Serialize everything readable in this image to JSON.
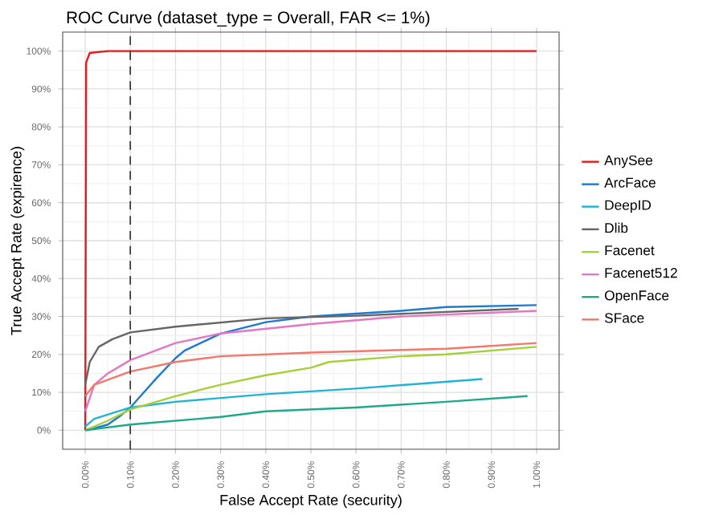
{
  "chart_data": {
    "type": "line",
    "title": "ROC Curve (dataset_type = Overall, FAR <= 1%)",
    "xlabel": "False Accept Rate (security)",
    "ylabel": "True Accept Rate (expirence)",
    "xlim": [
      -0.05,
      1.05
    ],
    "ylim": [
      -5,
      105
    ],
    "xticks": [
      {
        "value": 0,
        "label": "0.00%"
      },
      {
        "value": 0.1,
        "label": "0.10%"
      },
      {
        "value": 0.2,
        "label": "0.20%"
      },
      {
        "value": 0.3,
        "label": "0.30%"
      },
      {
        "value": 0.4,
        "label": "0.40%"
      },
      {
        "value": 0.5,
        "label": "0.50%"
      },
      {
        "value": 0.6,
        "label": "0.60%"
      },
      {
        "value": 0.7,
        "label": "0.70%"
      },
      {
        "value": 0.8,
        "label": "0.80%"
      },
      {
        "value": 0.9,
        "label": "0.90%"
      },
      {
        "value": 1.0,
        "label": "1.00%"
      }
    ],
    "yticks": [
      {
        "value": 0,
        "label": "0%"
      },
      {
        "value": 10,
        "label": "10%"
      },
      {
        "value": 20,
        "label": "20%"
      },
      {
        "value": 30,
        "label": "30%"
      },
      {
        "value": 40,
        "label": "40%"
      },
      {
        "value": 50,
        "label": "50%"
      },
      {
        "value": 60,
        "label": "60%"
      },
      {
        "value": 70,
        "label": "70%"
      },
      {
        "value": 80,
        "label": "80%"
      },
      {
        "value": 90,
        "label": "90%"
      },
      {
        "value": 100,
        "label": "100%"
      }
    ],
    "grid": true,
    "legend": "right",
    "marker": "none",
    "line_style": "solid",
    "ref_lines": [
      {
        "axis": "x",
        "value": 0.1,
        "color": "#333333",
        "line_style": "dashed"
      }
    ],
    "series": [
      {
        "name": "AnySee",
        "color": "#e41a1c",
        "x": [
          0,
          0.002,
          0.01,
          0.05,
          1.0
        ],
        "values": [
          0,
          97,
          99.5,
          100,
          100
        ]
      },
      {
        "name": "ArcFace",
        "color": "#1f78d1",
        "x": [
          0,
          0.02,
          0.05,
          0.08,
          0.1,
          0.13,
          0.16,
          0.2,
          0.22,
          0.3,
          0.4,
          0.5,
          0.7,
          0.8,
          1.0
        ],
        "values": [
          0,
          0.5,
          1.5,
          4,
          6,
          10,
          14,
          19,
          21,
          25.5,
          28.5,
          30,
          31.5,
          32.5,
          33
        ]
      },
      {
        "name": "DeepID",
        "color": "#1fb4d6",
        "x": [
          0,
          0.02,
          0.1,
          0.2,
          0.4,
          0.6,
          0.88
        ],
        "values": [
          1,
          3,
          6,
          7.5,
          9.5,
          11,
          13.5
        ]
      },
      {
        "name": "Dlib",
        "color": "#666666",
        "x": [
          0,
          0.01,
          0.03,
          0.06,
          0.1,
          0.2,
          0.4,
          0.6,
          0.96
        ],
        "values": [
          12,
          18,
          22,
          24,
          25.8,
          27.3,
          29.5,
          30.2,
          32
        ]
      },
      {
        "name": "Facenet",
        "color": "#a6cf3a",
        "x": [
          0,
          0.05,
          0.1,
          0.2,
          0.3,
          0.4,
          0.5,
          0.54,
          0.7,
          0.8,
          1.0
        ],
        "values": [
          0,
          2.5,
          5.5,
          9,
          12,
          14.5,
          16.5,
          18,
          19.5,
          20,
          22
        ]
      },
      {
        "name": "Facenet512",
        "color": "#e377c2",
        "x": [
          0,
          0.02,
          0.05,
          0.1,
          0.2,
          0.3,
          0.5,
          0.7,
          1.0
        ],
        "values": [
          5,
          12,
          15,
          18.5,
          23,
          25.5,
          28,
          30,
          31.5
        ]
      },
      {
        "name": "OpenFace",
        "color": "#1fa88a",
        "x": [
          0,
          0.1,
          0.3,
          0.4,
          0.6,
          0.8,
          0.98
        ],
        "values": [
          0,
          1.5,
          3.5,
          5,
          6,
          7.5,
          9
        ]
      },
      {
        "name": "SFace",
        "color": "#f4776b",
        "x": [
          0,
          0.02,
          0.1,
          0.2,
          0.3,
          0.5,
          0.8,
          1.0
        ],
        "values": [
          9,
          12,
          15.5,
          18,
          19.5,
          20.5,
          21.5,
          23
        ]
      }
    ]
  }
}
